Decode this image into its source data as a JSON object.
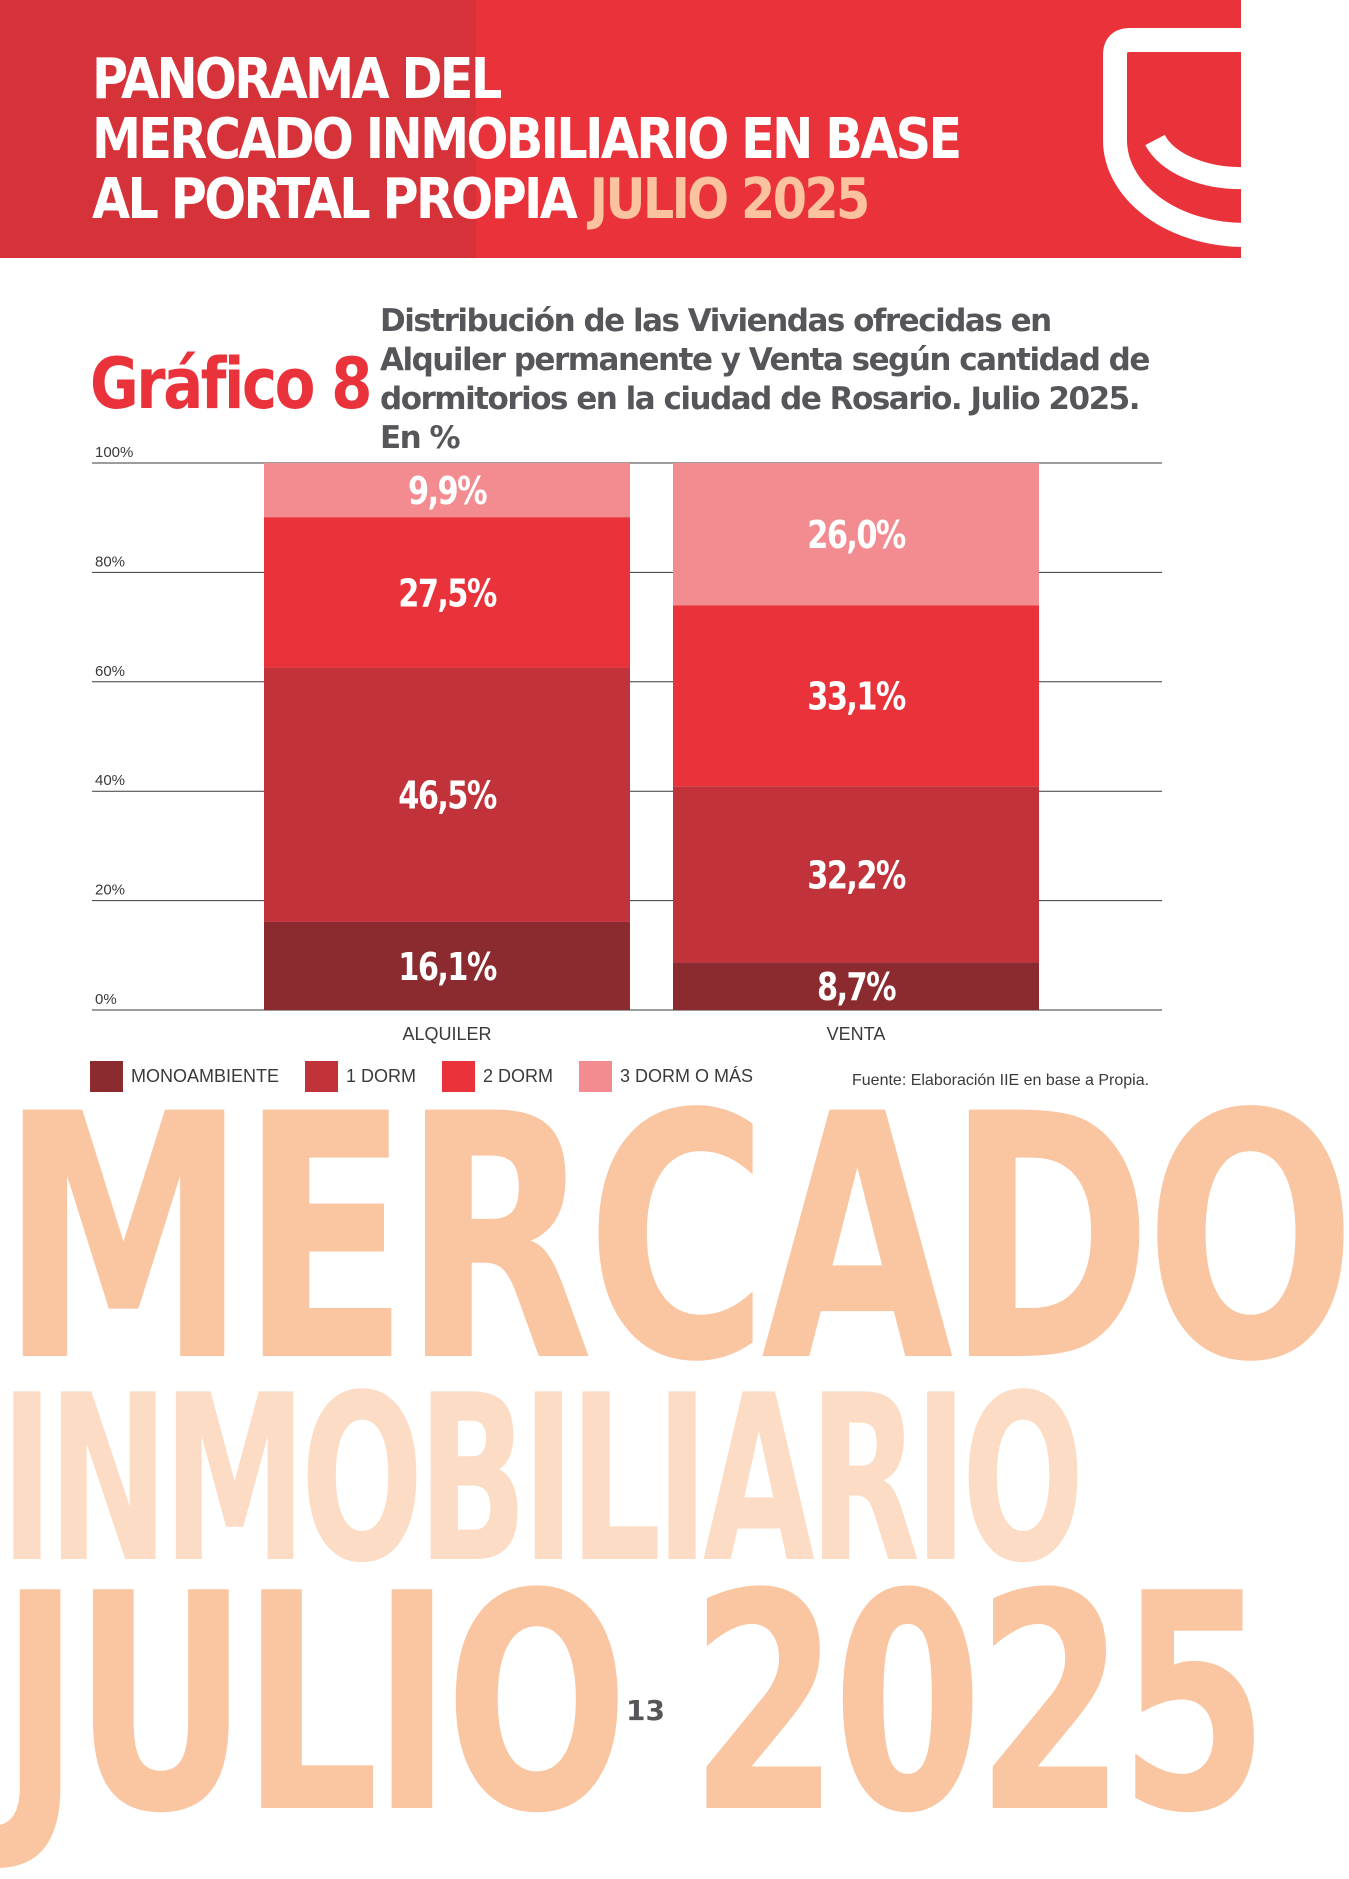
{
  "header": {
    "title_line1": "PANORAMA DEL",
    "title_line2": "MERCADO INMOBILIARIO EN BASE",
    "title_line3": "AL PORTAL PROPIA",
    "title_accent": "JULIO 2025"
  },
  "colors": {
    "brand_red": "#ea323a",
    "brand_red_dark": "#d5323a",
    "accent_peach": "#fac29f",
    "monoambiente": "#8b2b30",
    "one_dorm": "#c2323a",
    "two_dorm": "#ea323a",
    "three_dorm": "#f28c90"
  },
  "chart_label": "Gráfico 8",
  "chart_title": "Distribución de las Viviendas ofrecidas en Alquiler permanente y Venta según cantidad de dormitorios en la ciudad de Rosario. Julio 2025. En %",
  "chart_data": {
    "type": "bar",
    "stacked": true,
    "categories": [
      "ALQUILER",
      "VENTA"
    ],
    "series": [
      {
        "name": "MONOAMBIENTE",
        "values": [
          16.1,
          8.7
        ],
        "labels": [
          "16,1%",
          "8,7%"
        ]
      },
      {
        "name": "1 DORM",
        "values": [
          46.5,
          32.2
        ],
        "labels": [
          "46,5%",
          "32,2%"
        ]
      },
      {
        "name": "2 DORM",
        "values": [
          27.5,
          33.1
        ],
        "labels": [
          "27,5%",
          "33,1%"
        ]
      },
      {
        "name": "3 DORM O MÁS",
        "values": [
          9.9,
          26.0
        ],
        "labels": [
          "9,9%",
          "26,0%"
        ]
      }
    ],
    "ylim": [
      0,
      100
    ],
    "yticks": [
      "0%",
      "20%",
      "40%",
      "60%",
      "80%",
      "100%"
    ],
    "grid": true,
    "legend_position": "bottom"
  },
  "source": "Fuente: Elaboración IIE en base a Propia.",
  "background_words": [
    "MERCADO",
    "INMOBILIARIO",
    "JULIO 2025"
  ],
  "page_number": "13"
}
